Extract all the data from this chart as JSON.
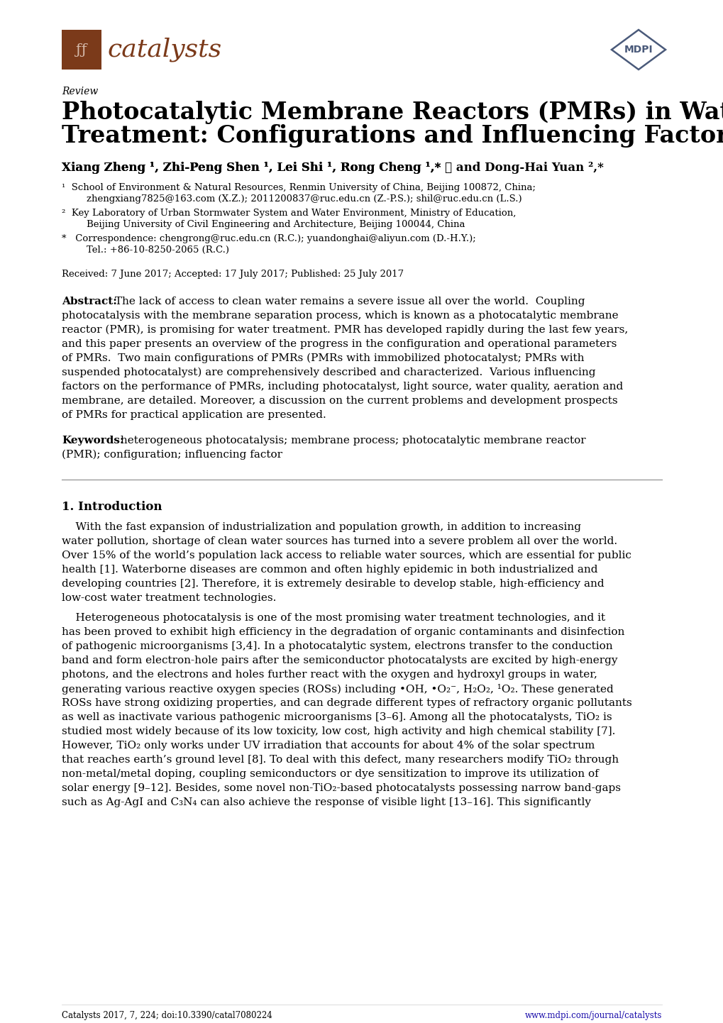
{
  "bg_color": "#ffffff",
  "journal_name": "catalysts",
  "journal_color": "#7B3A1A",
  "mdpi_color": "#4a5a7a",
  "review_label": "Review",
  "title_line1": "Photocatalytic Membrane Reactors (PMRs) in Water",
  "title_line2": "Treatment: Configurations and Influencing Factors",
  "author_line": "Xiang Zheng ¹, Zhi-Peng Shen ¹, Lei Shi ¹, Rong Cheng ¹,* ● and Dong-Hai Yuan ²,*",
  "affil1a": "¹  School of Environment & Natural Resources, Renmin University of China, Beijing 100872, China;",
  "affil1b": "    zhengxiang7825@163.com (X.Z.); 2011200837@ruc.edu.cn (Z.-P.S.); shil@ruc.edu.cn (L.S.)",
  "affil2a": "²  Key Laboratory of Urban Stormwater System and Water Environment, Ministry of Education,",
  "affil2b": "    Beijing University of Civil Engineering and Architecture, Beijing 100044, China",
  "affil3a": "*   Correspondence: chengrong@ruc.edu.cn (R.C.); yuandonghai@aliyun.com (D.-H.Y.);",
  "affil3b": "    Tel.: +86-10-8250-2065 (R.C.)",
  "received": "Received: 7 June 2017; Accepted: 17 July 2017; Published: 25 July 2017",
  "abstract_bold": "Abstract:",
  "abstract_rest": " The lack of access to clean water remains a severe issue all over the world.  Coupling photocatalysis with the membrane separation process, which is known as a photocatalytic membrane reactor (PMR), is promising for water treatment. PMR has developed rapidly during the last few years, and this paper presents an overview of the progress in the configuration and operational parameters of PMRs.  Two main configurations of PMRs (PMRs with immobilized photocatalyst; PMRs with suspended photocatalyst) are comprehensively described and characterized.  Various influencing factors on the performance of PMRs, including photocatalyst, light source, water quality, aeration and membrane, are detailed. Moreover, a discussion on the current problems and development prospects of PMRs for practical application are presented.",
  "keywords_bold": "Keywords:",
  "keywords_rest": " heterogeneous photocatalysis; membrane process; photocatalytic membrane reactor (PMR); configuration; influencing factor",
  "section1": "1. Introduction",
  "para1": "    With the fast expansion of industrialization and population growth, in addition to increasing water pollution, shortage of clean water sources has turned into a severe problem all over the world. Over 15% of the world’s population lack access to reliable water sources, which are essential for public health [1]. Waterborne diseases are common and often highly epidemic in both industrialized and developing countries [2]. Therefore, it is extremely desirable to develop stable, high-efficiency and low-cost water treatment technologies.",
  "para2": "    Heterogeneous photocatalysis is one of the most promising water treatment technologies, and it has been proved to exhibit high efficiency in the degradation of organic contaminants and disinfection of pathogenic microorganisms [3,4]. In a photocatalytic system, electrons transfer to the conduction band and form electron-hole pairs after the semiconductor photocatalysts are excited by high-energy photons, and the electrons and holes further react with the oxygen and hydroxyl groups in water, generating various reactive oxygen species (ROSs) including •OH, •O₂⁻, H₂O₂, ¹O₂. These generated ROSs have strong oxidizing properties, and can degrade different types of refractory organic pollutants as well as inactivate various pathogenic microorganisms [3–6]. Among all the photocatalysts, TiO₂ is studied most widely because of its low toxicity, low cost, high activity and high chemical stability [7]. However, TiO₂ only works under UV irradiation that accounts for about 4% of the solar spectrum that reaches earth’s ground level [8]. To deal with this defect, many researchers modify TiO₂ through non-metal/metal doping, coupling semiconductors or dye sensitization to improve its utilization of solar energy [9–12]. Besides, some novel non-TiO₂-based photocatalysts possessing narrow band-gaps such as Ag-AgI and C₃N₄ can also achieve the response of visible light [13–16]. This significantly",
  "footer_left": "Catalysts 2017, 7, 224; doi:10.3390/catal7080224",
  "footer_right": "www.mdpi.com/journal/catalysts",
  "text_color": "#000000",
  "link_color": "#1a0dab"
}
